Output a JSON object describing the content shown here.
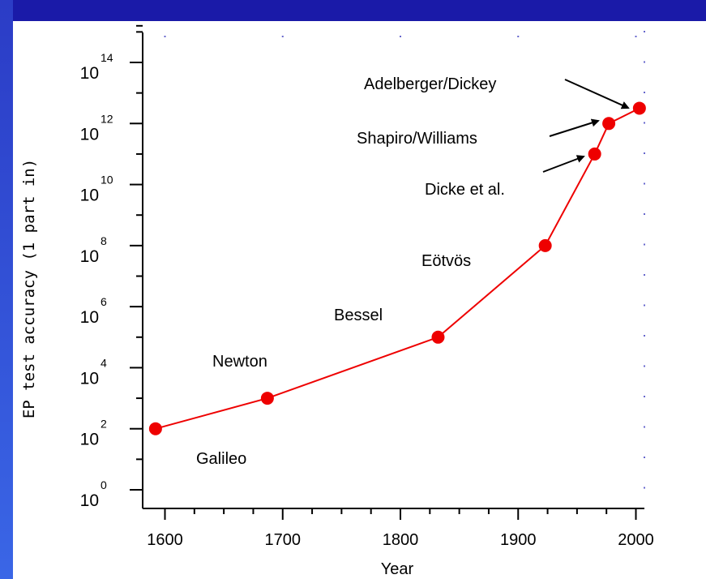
{
  "chart_data": {
    "type": "line",
    "title": "",
    "xlabel": "Year",
    "ylabel": "EP test accuracy (1 part in)",
    "xlim": [
      1590,
      2010
    ],
    "ylim": [
      0,
      15
    ],
    "y_scale": "log10",
    "x_ticks": [
      1600,
      1700,
      1800,
      1900,
      2000
    ],
    "x_tick_labels": [
      "1600",
      "1700",
      "1800",
      "1900",
      "2000"
    ],
    "y_ticks": [
      {
        "base": "10",
        "exp": "0",
        "value": 0
      },
      {
        "base": "10",
        "exp": "2",
        "value": 2
      },
      {
        "base": "10",
        "exp": "4",
        "value": 4
      },
      {
        "base": "10",
        "exp": "6",
        "value": 6
      },
      {
        "base": "10",
        "exp": "8",
        "value": 8
      },
      {
        "base": "10",
        "exp": "10",
        "value": 10
      },
      {
        "base": "10",
        "exp": "12",
        "value": 12
      },
      {
        "base": "10",
        "exp": "14",
        "value": 14
      }
    ],
    "series_color": "#ee0000",
    "points": [
      {
        "x": 1592,
        "y_exp": 2.0,
        "label": "Galileo"
      },
      {
        "x": 1687,
        "y_exp": 3.0,
        "label": "Newton"
      },
      {
        "x": 1832,
        "y_exp": 5.0,
        "label": "Bessel"
      },
      {
        "x": 1923,
        "y_exp": 8.0,
        "label": "Eötvös"
      },
      {
        "x": 1965,
        "y_exp": 11.0,
        "label": "Dicke et al."
      },
      {
        "x": 1977,
        "y_exp": 12.0,
        "label": "Shapiro/Williams"
      },
      {
        "x": 2003,
        "y_exp": 12.5,
        "label": "Adelberger/Dickey"
      }
    ],
    "grid": "dotted-minor"
  }
}
